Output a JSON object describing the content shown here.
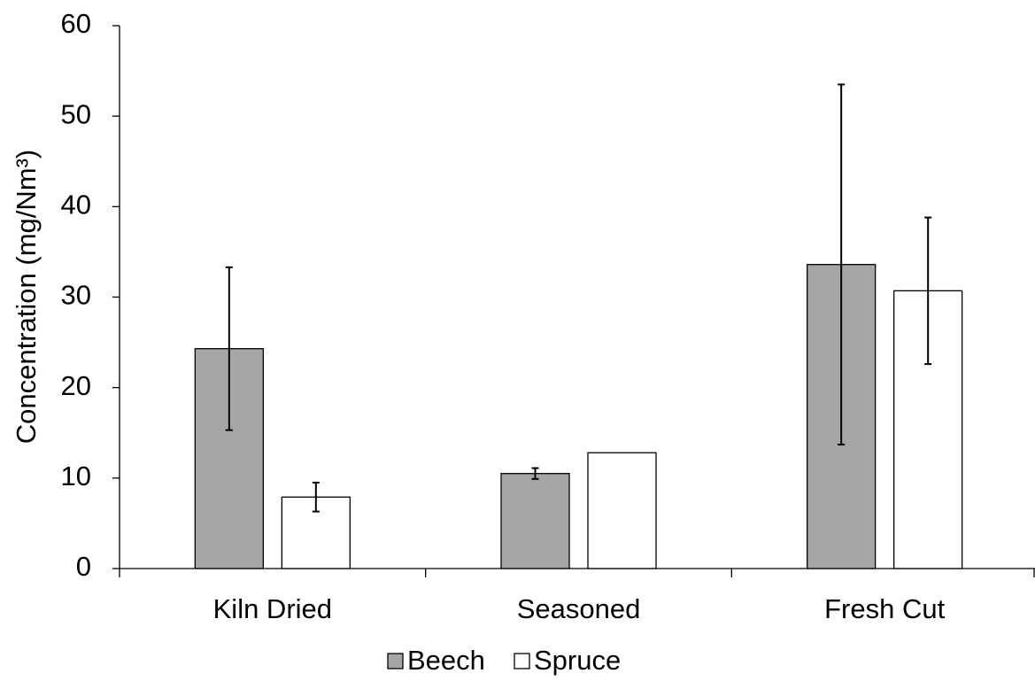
{
  "chart_data": {
    "type": "bar",
    "y_label": "Concentration (mg/Nm³)",
    "categories": [
      "Kiln Dried",
      "Seasoned",
      "Fresh Cut"
    ],
    "series": [
      {
        "name": "Beech",
        "color": "#a6a6a6",
        "values": [
          24.3,
          10.5,
          33.6
        ],
        "errors": [
          9.0,
          0.6,
          19.9
        ]
      },
      {
        "name": "Spruce",
        "color": "#ffffff",
        "values": [
          7.9,
          12.8,
          30.7
        ],
        "errors": [
          1.6,
          null,
          8.1
        ]
      }
    ],
    "ylim": [
      0,
      60
    ],
    "yticks": [
      0,
      10,
      20,
      30,
      40,
      50,
      60
    ],
    "grid": false
  }
}
